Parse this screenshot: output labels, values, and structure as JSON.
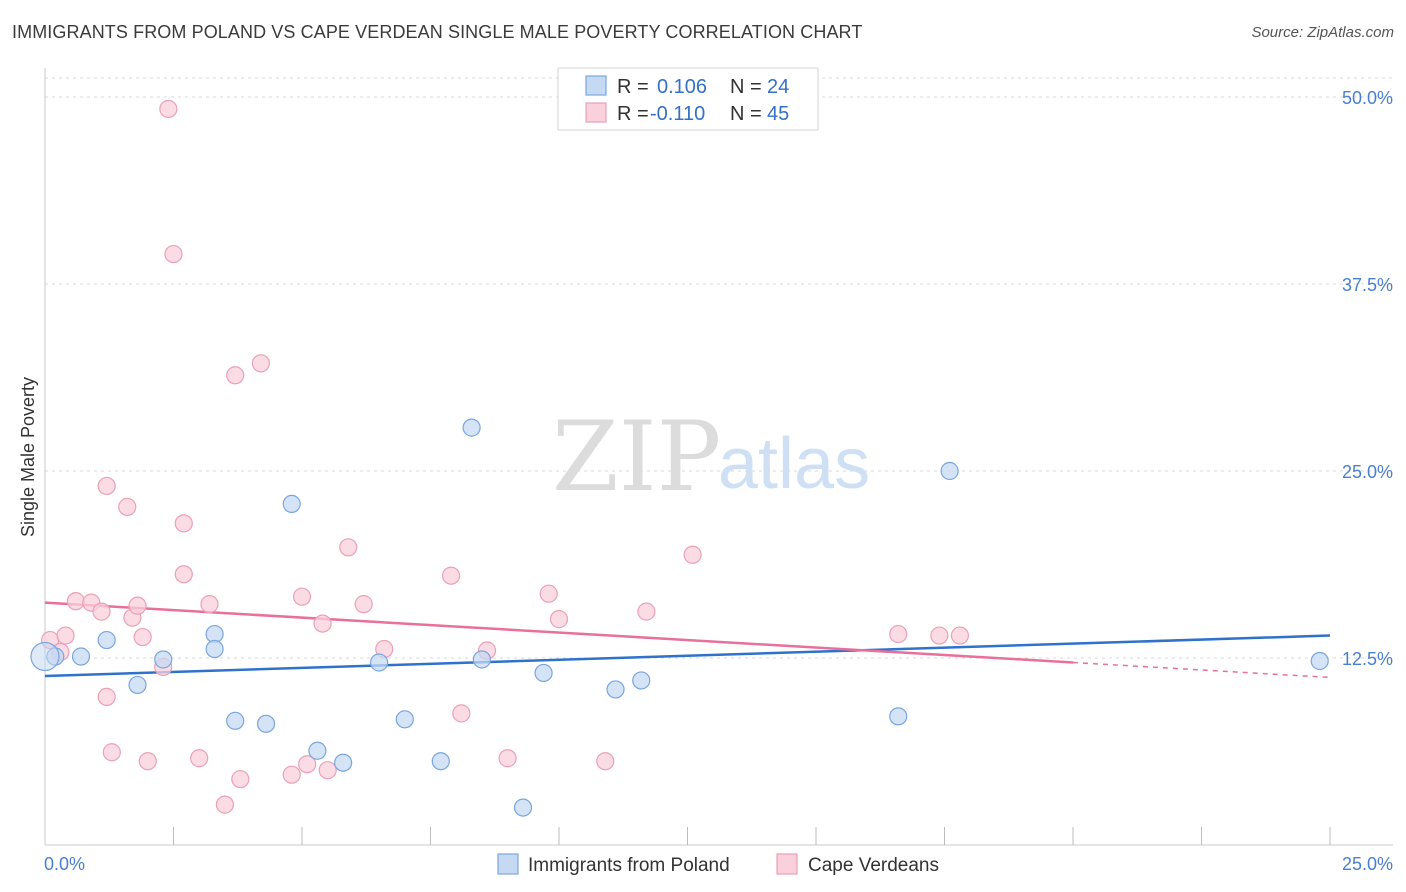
{
  "title": "IMMIGRANTS FROM POLAND VS CAPE VERDEAN SINGLE MALE POVERTY CORRELATION CHART",
  "source": "Source: ZipAtlas.com",
  "watermark": {
    "zip": "ZIP",
    "atlas": "atlas"
  },
  "colors": {
    "blue_fill": "#c5d9f3",
    "blue_stroke": "#7aa6de",
    "blue_line": "#2f72cc",
    "pink_fill": "#f9d0dc",
    "pink_stroke": "#eba0b8",
    "pink_line": "#e8709a",
    "grid": "#d9d9d9",
    "tick_text": "#4a7fd0"
  },
  "legend": {
    "rows": [
      {
        "r_label": "R =",
        "r_value": "0.106",
        "n_label": "N =",
        "n_value": "24"
      },
      {
        "r_label": "R =",
        "r_value": "-0.110",
        "n_label": "N =",
        "n_value": "45"
      }
    ]
  },
  "chart_data": {
    "type": "scatter",
    "title": "IMMIGRANTS FROM POLAND VS CAPE VERDEAN SINGLE MALE POVERTY CORRELATION CHART",
    "xlabel": "",
    "ylabel": "Single Male Poverty",
    "xlim": [
      0,
      25
    ],
    "ylim": [
      0,
      50
    ],
    "x_tick_labels": [
      "0.0%",
      "25.0%"
    ],
    "y_ticks": [
      12.5,
      25.0,
      37.5,
      50.0
    ],
    "y_tick_labels": [
      "12.5%",
      "25.0%",
      "37.5%",
      "50.0%"
    ],
    "grid": true,
    "legend_position": "top-center",
    "series": [
      {
        "name": "Immigrants from Poland",
        "r": 0.106,
        "n": 24,
        "trend": {
          "x": [
            0,
            25
          ],
          "y": [
            11.3,
            14.0
          ],
          "dashed_from": null
        },
        "points": [
          [
            0.2,
            12.6
          ],
          [
            0.7,
            12.6
          ],
          [
            1.2,
            13.7
          ],
          [
            1.8,
            10.7
          ],
          [
            2.3,
            12.4
          ],
          [
            3.3,
            14.1
          ],
          [
            3.3,
            13.1
          ],
          [
            3.7,
            8.3
          ],
          [
            4.3,
            8.1
          ],
          [
            4.8,
            22.8
          ],
          [
            5.3,
            6.3
          ],
          [
            5.8,
            5.5
          ],
          [
            6.5,
            12.2
          ],
          [
            7.0,
            8.4
          ],
          [
            7.7,
            5.6
          ],
          [
            8.3,
            27.9
          ],
          [
            8.5,
            12.4
          ],
          [
            9.3,
            2.5
          ],
          [
            9.7,
            11.5
          ],
          [
            11.1,
            10.4
          ],
          [
            11.6,
            11.0
          ],
          [
            16.6,
            8.6
          ],
          [
            17.6,
            25.0
          ],
          [
            24.8,
            12.3
          ]
        ]
      },
      {
        "name": "Cape Verdeans",
        "r": -0.11,
        "n": 45,
        "trend": {
          "x": [
            0,
            25
          ],
          "y": [
            16.2,
            11.2
          ],
          "dashed_from": 20.0
        },
        "points": [
          [
            0.1,
            13.7
          ],
          [
            0.3,
            12.9
          ],
          [
            0.4,
            14.0
          ],
          [
            0.6,
            16.3
          ],
          [
            0.9,
            16.2
          ],
          [
            1.1,
            15.6
          ],
          [
            1.2,
            24.0
          ],
          [
            1.2,
            9.9
          ],
          [
            1.3,
            6.2
          ],
          [
            1.6,
            22.6
          ],
          [
            1.7,
            15.2
          ],
          [
            1.8,
            16.0
          ],
          [
            1.9,
            13.9
          ],
          [
            2.0,
            5.6
          ],
          [
            2.3,
            11.9
          ],
          [
            2.4,
            49.2
          ],
          [
            2.5,
            39.5
          ],
          [
            2.7,
            21.5
          ],
          [
            2.7,
            18.1
          ],
          [
            3.0,
            5.8
          ],
          [
            3.2,
            16.1
          ],
          [
            3.5,
            2.7
          ],
          [
            3.7,
            31.4
          ],
          [
            3.8,
            4.4
          ],
          [
            4.2,
            32.2
          ],
          [
            4.8,
            4.7
          ],
          [
            5.0,
            16.6
          ],
          [
            5.1,
            5.4
          ],
          [
            5.4,
            14.8
          ],
          [
            5.5,
            5.0
          ],
          [
            5.9,
            19.9
          ],
          [
            6.2,
            16.1
          ],
          [
            6.6,
            13.1
          ],
          [
            7.9,
            18.0
          ],
          [
            8.1,
            8.8
          ],
          [
            8.6,
            13.0
          ],
          [
            9.0,
            5.8
          ],
          [
            9.8,
            16.8
          ],
          [
            10.0,
            15.1
          ],
          [
            10.9,
            5.6
          ],
          [
            11.7,
            15.6
          ],
          [
            12.6,
            19.4
          ],
          [
            16.6,
            14.1
          ],
          [
            17.4,
            14.0
          ],
          [
            17.8,
            14.0
          ]
        ]
      }
    ]
  }
}
